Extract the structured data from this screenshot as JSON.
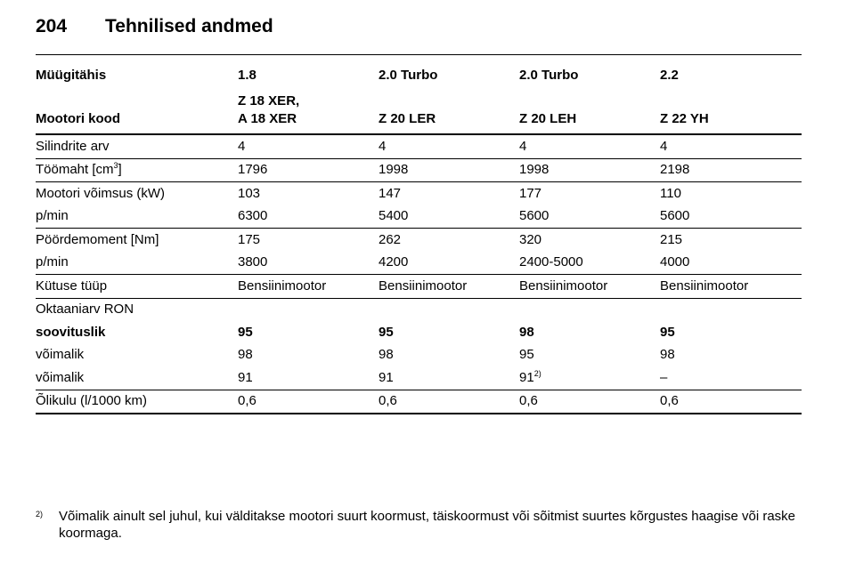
{
  "header": {
    "page": "204",
    "title": "Tehnilised andmed"
  },
  "table": {
    "head": [
      {
        "cells": [
          "Müügitähis",
          "1.8",
          "2.0 Turbo",
          "2.0 Turbo",
          "2.2"
        ]
      },
      {
        "cells": [
          "Mootori kood",
          [
            "Z 18 XER,",
            "A 18 XER"
          ],
          "Z 20 LER",
          "Z 20 LEH",
          "Z 22 YH"
        ]
      }
    ],
    "groups": [
      {
        "rows": [
          {
            "cells": [
              "Silindrite arv",
              "4",
              "4",
              "4",
              "4"
            ]
          }
        ]
      },
      {
        "rows": [
          {
            "cells": [
              {
                "text": "Töömaht [cm",
                "sup": "3",
                "after": "]"
              },
              "1796",
              "1998",
              "1998",
              "2198"
            ]
          }
        ]
      },
      {
        "rows": [
          {
            "cells": [
              "Mootori võimsus (kW)",
              "103",
              "147",
              "177",
              "110"
            ]
          },
          {
            "cells": [
              "p/min",
              "6300",
              "5400",
              "5600",
              "5600"
            ]
          }
        ]
      },
      {
        "rows": [
          {
            "cells": [
              "Pöördemoment [Nm]",
              "175",
              "262",
              "320",
              "215"
            ]
          },
          {
            "cells": [
              "p/min",
              "3800",
              "4200",
              "2400-5000",
              "4000"
            ]
          }
        ]
      },
      {
        "rows": [
          {
            "cells": [
              "Kütuse tüüp",
              "Bensiinimootor",
              "Bensiinimootor",
              "Bensiinimootor",
              "Bensiinimootor"
            ]
          }
        ]
      },
      {
        "rows": [
          {
            "cells": [
              "Oktaaniarv RON"
            ]
          },
          {
            "cells": [
              "soovituslik",
              "95",
              "95",
              "98",
              "95"
            ],
            "bold": true
          },
          {
            "cells": [
              "võimalik",
              "98",
              "98",
              "95",
              "98"
            ]
          },
          {
            "cells": [
              "võimalik",
              "91",
              "91",
              {
                "text": "91",
                "sup": "2)"
              },
              "–"
            ]
          }
        ]
      },
      {
        "rows": [
          {
            "cells": [
              "Õlikulu (l/1000 km)",
              "0,6",
              "0,6",
              "0,6",
              "0,6"
            ]
          }
        ]
      }
    ]
  },
  "footnote": {
    "marker": "2)",
    "text": "Võimalik ainult sel juhul, kui välditakse mootori suurt koormust, täiskoormust või sõitmist suurtes kõrgustes haagise või raske koormaga."
  }
}
